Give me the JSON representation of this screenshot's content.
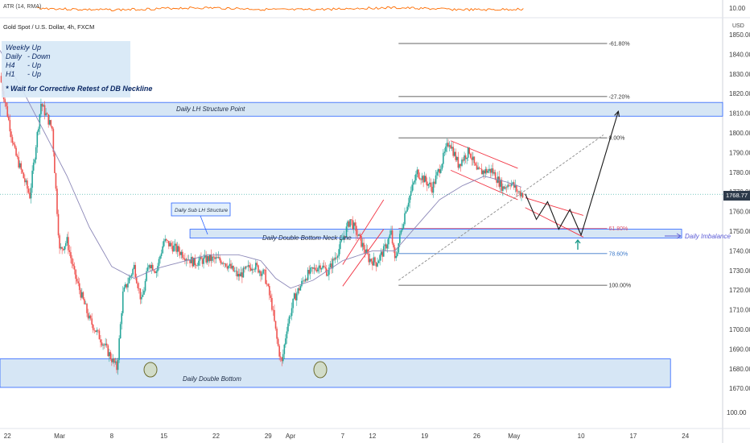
{
  "header": {
    "atr_label": "ATR (14, RMA)",
    "symbol_title": "Gold Spot / U.S. Dollar, 4h, FXCM",
    "currency": "USD"
  },
  "info_box": {
    "lines": [
      {
        "tf": "Weekly",
        "sep": "-",
        "dir": "Up"
      },
      {
        "tf": "Daily",
        "sep": "-",
        "dir": "Down"
      },
      {
        "tf": "H4",
        "sep": "-",
        "dir": "Up"
      },
      {
        "tf": "H1",
        "sep": "-",
        "dir": "Up"
      }
    ],
    "note": "* Wait for Corrective Retest of DB Neckline"
  },
  "annotations": {
    "lh_structure": "Daily LH Structure Point",
    "sub_lh": "Daily Sub LH Structure",
    "neckline": "Daily Double Bottom Neck Line",
    "double_bottom": "Daily Double Bottom",
    "imbalance": "Daily Imbalance"
  },
  "colors": {
    "up": "#26a69a",
    "down": "#ef5350",
    "zone_fill": "#cfe2f3",
    "zone_border": "#2962ff",
    "ma": "#8c88b8",
    "atr": "#ff6d00"
  },
  "chart_data": {
    "type": "candlestick",
    "title": "Gold Spot / U.S. Dollar, 4h, FXCM",
    "y_unit": "USD",
    "ylim": [
      1660,
      1860
    ],
    "y_ticks": [
      1670,
      1680,
      1690,
      1700,
      1710,
      1720,
      1730,
      1740,
      1750,
      1760,
      1770,
      1780,
      1790,
      1800,
      1810,
      1820,
      1830,
      1840,
      1850
    ],
    "x_ticks": [
      "22",
      "Mar",
      "8",
      "15",
      "22",
      "29",
      "Apr",
      "7",
      "12",
      "19",
      "26",
      "May",
      "10",
      "17",
      "24"
    ],
    "x_tick_days": [
      -7,
      0,
      7,
      14,
      21,
      28,
      31,
      38,
      42,
      49,
      56,
      61,
      70,
      77,
      84
    ],
    "x_domain": [
      -8,
      89
    ],
    "last_price": "1768.77",
    "atr_panel_tick": "10.00",
    "lower_axis_tick": "100.00",
    "path": [
      [
        -8,
        1829
      ],
      [
        -6,
        1790
      ],
      [
        -4,
        1768
      ],
      [
        -2.5,
        1815
      ],
      [
        -1,
        1802
      ],
      [
        0,
        1740
      ],
      [
        1,
        1745
      ],
      [
        2,
        1728
      ],
      [
        4,
        1705
      ],
      [
        6,
        1692
      ],
      [
        7,
        1685
      ],
      [
        7.7,
        1680
      ],
      [
        8.5,
        1718
      ],
      [
        10,
        1732
      ],
      [
        11,
        1714
      ],
      [
        12,
        1734
      ],
      [
        13,
        1730
      ],
      [
        14,
        1745
      ],
      [
        16,
        1740
      ],
      [
        18,
        1734
      ],
      [
        20,
        1736
      ],
      [
        22,
        1735
      ],
      [
        24,
        1727
      ],
      [
        26,
        1733
      ],
      [
        27.5,
        1728
      ],
      [
        28.5,
        1712
      ],
      [
        29.2,
        1694
      ],
      [
        29.8,
        1682
      ],
      [
        30.5,
        1701
      ],
      [
        31.5,
        1716
      ],
      [
        33,
        1727
      ],
      [
        35,
        1733
      ],
      [
        36,
        1729
      ],
      [
        37.5,
        1741
      ],
      [
        39,
        1756
      ],
      [
        40.5,
        1744
      ],
      [
        41.5,
        1736
      ],
      [
        42.5,
        1734
      ],
      [
        43.5,
        1740
      ],
      [
        44.5,
        1749
      ],
      [
        45,
        1735
      ],
      [
        46.5,
        1762
      ],
      [
        48,
        1780
      ],
      [
        50,
        1772
      ],
      [
        51,
        1782
      ],
      [
        52.3,
        1796
      ],
      [
        53.5,
        1784
      ],
      [
        55,
        1791
      ],
      [
        56,
        1780
      ],
      [
        58,
        1781
      ],
      [
        59.5,
        1772
      ],
      [
        60.5,
        1775
      ],
      [
        61.5,
        1770
      ],
      [
        62.3,
        1768.77
      ]
    ],
    "ma_path": [
      [
        -8,
        1842
      ],
      [
        -5,
        1822
      ],
      [
        -2,
        1800
      ],
      [
        1,
        1778
      ],
      [
        4,
        1752
      ],
      [
        7,
        1732
      ],
      [
        10,
        1726
      ],
      [
        13,
        1731
      ],
      [
        16,
        1734
      ],
      [
        20,
        1738
      ],
      [
        24,
        1738
      ],
      [
        27,
        1735
      ],
      [
        29,
        1726
      ],
      [
        31,
        1721
      ],
      [
        34,
        1725
      ],
      [
        38,
        1735
      ],
      [
        42,
        1740
      ],
      [
        45,
        1740
      ],
      [
        48,
        1753
      ],
      [
        51,
        1766
      ],
      [
        54,
        1773
      ],
      [
        57,
        1778
      ],
      [
        60,
        1775
      ],
      [
        62.3,
        1772
      ]
    ],
    "zones": [
      {
        "name": "Daily LH Structure Point",
        "x0": -8,
        "x1": 89,
        "y0": 1808.5,
        "y1": 1815.5
      },
      {
        "name": "Daily Double Bottom Neck Line",
        "x0": 17.5,
        "x1": 83.5,
        "y0": 1746.5,
        "y1": 1751
      },
      {
        "name": "Daily Double Bottom",
        "x0": -8,
        "x1": 82,
        "y0": 1670.5,
        "y1": 1685
      }
    ],
    "fibonacci": {
      "x0": 45.5,
      "x1": 73.5,
      "levels": [
        {
          "label": "-61.80%",
          "price": 1845.5
        },
        {
          "label": "-27.20%",
          "price": 1818.5
        },
        {
          "label": "0.00%",
          "price": 1797.5
        },
        {
          "label": "61.80%",
          "price": 1751.5
        },
        {
          "label": "78.60%",
          "price": 1738.6
        },
        {
          "label": "100.00%",
          "price": 1722.5
        }
      ]
    },
    "channels": [
      {
        "upper": [
          [
            38,
            1733
          ],
          [
            43.5,
            1766
          ]
        ],
        "lower": [
          [
            38,
            1722
          ],
          [
            43.5,
            1751
          ]
        ]
      },
      {
        "upper": [
          [
            52.5,
            1796
          ],
          [
            61.5,
            1782
          ]
        ],
        "lower": [
          [
            52.5,
            1781
          ],
          [
            61.5,
            1766
          ]
        ]
      }
    ],
    "projection_wedge": {
      "upper": [
        [
          62.5,
          1767
        ],
        [
          70.3,
          1758
        ]
      ],
      "lower": [
        [
          62.5,
          1762
        ],
        [
          70.3,
          1747
        ]
      ]
    },
    "projection_path": [
      [
        62.5,
        1769
      ],
      [
        64,
        1756
      ],
      [
        65.5,
        1765
      ],
      [
        67,
        1751
      ],
      [
        68.5,
        1761
      ],
      [
        70,
        1748
      ],
      [
        75,
        1811
      ]
    ],
    "trendline": [
      [
        45.5,
        1725
      ],
      [
        73,
        1799
      ]
    ],
    "imbalance_level": 1749
  }
}
